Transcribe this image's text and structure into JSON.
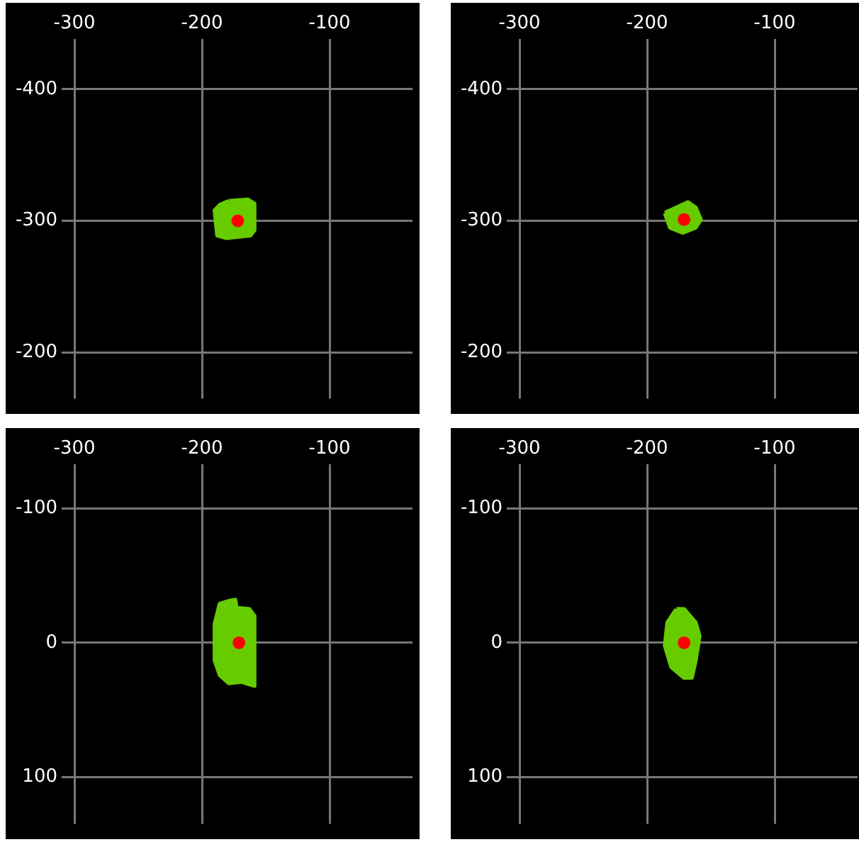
{
  "chart_data": [
    {
      "type": "scatter",
      "xlim": [
        -310,
        -35
      ],
      "xticks": [
        -300,
        -200,
        -100
      ],
      "ylim": [
        -165,
        -438
      ],
      "yticks": [
        -400,
        -300,
        -200
      ],
      "grid": true,
      "legend": false,
      "series": [
        {
          "type": "area",
          "color": "#66cc00",
          "marker": "none",
          "x": [
            -179,
            -164,
            -159,
            -159,
            -162,
            -181,
            -188,
            -190,
            -186
          ],
          "values": [
            -315,
            -316,
            -313,
            -293,
            -289,
            -287,
            -289,
            -308,
            -312
          ]
        },
        {
          "type": "scatter",
          "color": "#ff0000",
          "marker": "circle",
          "x": [
            -172
          ],
          "values": [
            -300
          ]
        }
      ]
    },
    {
      "type": "scatter",
      "xlim": [
        -310,
        -35
      ],
      "xticks": [
        -300,
        -200,
        -100
      ],
      "ylim": [
        -165,
        -438
      ],
      "yticks": [
        -400,
        -300,
        -200
      ],
      "grid": true,
      "legend": false,
      "series": [
        {
          "type": "area",
          "color": "#66cc00",
          "marker": "none",
          "x": [
            -186,
            -177,
            -168,
            -162,
            -158,
            -162,
            -172,
            -182
          ],
          "values": [
            -306,
            -310,
            -314,
            -310,
            -301,
            -295,
            -291,
            -295
          ]
        },
        {
          "type": "scatter",
          "color": "#ff0000",
          "marker": "circle",
          "x": [
            -171
          ],
          "values": [
            -301
          ]
        }
      ]
    },
    {
      "type": "scatter",
      "xlim": [
        -310,
        -35
      ],
      "xticks": [
        -300,
        -200,
        -100
      ],
      "ylim": [
        135,
        -133
      ],
      "yticks": [
        -100,
        0,
        100
      ],
      "grid": true,
      "legend": false,
      "series": [
        {
          "type": "area",
          "color": "#66cc00",
          "marker": "none",
          "x": [
            -179,
            -174,
            -173,
            -163,
            -159,
            -159,
            -169,
            -179,
            -186,
            -190,
            -190,
            -186
          ],
          "values": [
            -31,
            -32,
            -26,
            -25,
            -20,
            32,
            29,
            30,
            24,
            13,
            -14,
            -29
          ]
        },
        {
          "type": "scatter",
          "color": "#ff0000",
          "marker": "circle",
          "x": [
            -171
          ],
          "values": [
            0
          ]
        }
      ]
    },
    {
      "type": "scatter",
      "xlim": [
        -310,
        -35
      ],
      "xticks": [
        -300,
        -200,
        -100
      ],
      "ylim": [
        135,
        -133
      ],
      "yticks": [
        -100,
        0,
        100
      ],
      "grid": true,
      "legend": false,
      "series": [
        {
          "type": "area",
          "color": "#66cc00",
          "marker": "none",
          "x": [
            -177,
            -171,
            -162,
            -159,
            -162,
            -165,
            -171,
            -181,
            -186,
            -184
          ],
          "values": [
            -25,
            -25,
            -15,
            -5,
            13,
            26,
            26,
            18,
            2,
            -15
          ]
        },
        {
          "type": "scatter",
          "color": "#ff0000",
          "marker": "circle",
          "x": [
            -171
          ],
          "values": [
            0
          ]
        }
      ]
    }
  ]
}
